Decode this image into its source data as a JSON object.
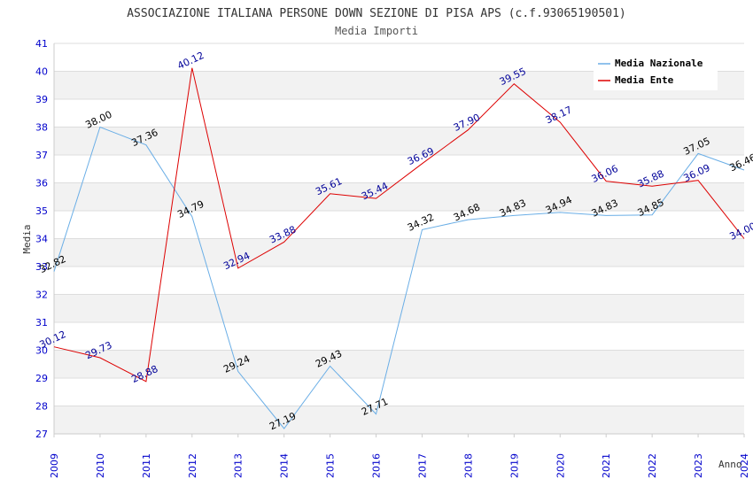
{
  "chart_data": {
    "type": "line",
    "title": "ASSOCIAZIONE ITALIANA PERSONE DOWN SEZIONE DI PISA APS (c.f.93065190501)",
    "subtitle": "Media Importi",
    "xlabel": "Anno",
    "ylabel": "Media",
    "ylim": [
      27,
      41
    ],
    "yticks": [
      "27",
      "28",
      "29",
      "30",
      "31",
      "32",
      "33",
      "34",
      "35",
      "36",
      "37",
      "38",
      "39",
      "40",
      "41"
    ],
    "categories": [
      "2009",
      "2010",
      "2011",
      "2012",
      "2013",
      "2014",
      "2015",
      "2016",
      "2017",
      "2018",
      "2019",
      "2020",
      "2021",
      "2022",
      "2023",
      "2024"
    ],
    "legend_position": "top-right",
    "series": [
      {
        "name": "Media Nazionale",
        "color": "#6aaee6",
        "label_color": "#000000",
        "values": [
          32.82,
          38.0,
          37.36,
          34.79,
          29.24,
          27.19,
          29.43,
          27.71,
          34.32,
          34.68,
          34.83,
          34.94,
          34.83,
          34.85,
          37.05,
          36.46
        ],
        "labels": [
          "32.82",
          "38.00",
          "37.36",
          "34.79",
          "29.24",
          "27.19",
          "29.43",
          "27.71",
          "34.32",
          "34.68",
          "34.83",
          "34.94",
          "34.83",
          "34.85",
          "37.05",
          "36.46"
        ]
      },
      {
        "name": "Media Ente",
        "color": "#dd0000",
        "label_color": "#000099",
        "values": [
          30.12,
          29.73,
          28.88,
          40.12,
          32.94,
          33.88,
          35.61,
          35.44,
          36.69,
          37.9,
          39.55,
          38.17,
          36.06,
          35.88,
          36.09,
          34.0
        ],
        "labels": [
          "30.12",
          "29.73",
          "28.88",
          "40.12",
          "32.94",
          "33.88",
          "35.61",
          "35.44",
          "36.69",
          "37.90",
          "39.55",
          "38.17",
          "36.06",
          "35.88",
          "36.09",
          "34.00"
        ]
      }
    ]
  }
}
